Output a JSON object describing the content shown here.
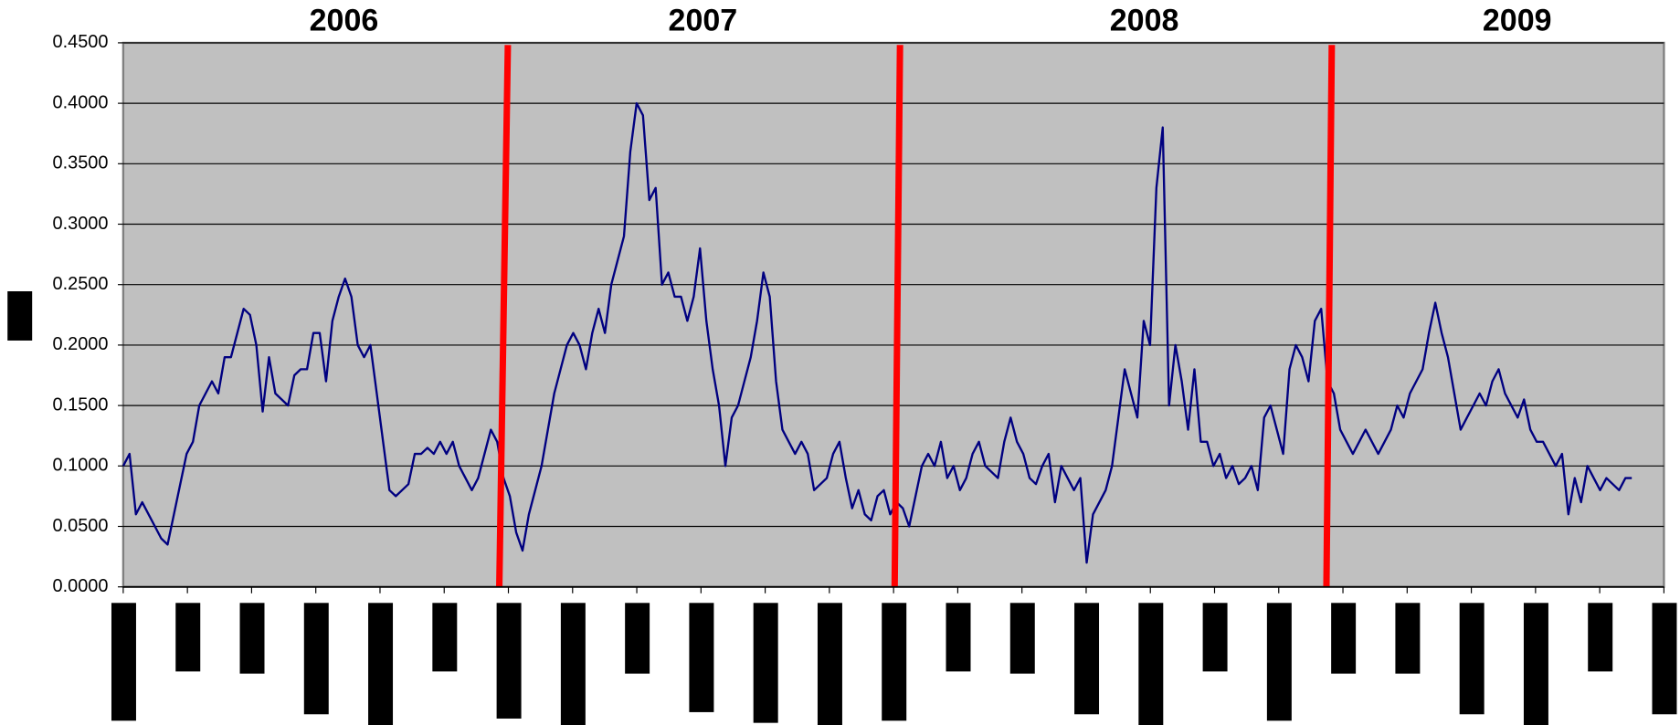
{
  "chart_data": {
    "type": "line",
    "annotations": [
      "2006",
      "2007",
      "2008",
      "2009"
    ],
    "series": [
      {
        "color": "#000080",
        "values": [
          0.1,
          0.11,
          0.06,
          0.07,
          0.06,
          0.05,
          0.04,
          0.035,
          0.06,
          0.085,
          0.11,
          0.12,
          0.15,
          0.16,
          0.17,
          0.16,
          0.19,
          0.19,
          0.21,
          0.23,
          0.225,
          0.2,
          0.145,
          0.19,
          0.16,
          0.155,
          0.15,
          0.175,
          0.18,
          0.18,
          0.21,
          0.21,
          0.17,
          0.22,
          0.24,
          0.255,
          0.24,
          0.2,
          0.19,
          0.2,
          0.16,
          0.12,
          0.08,
          0.075,
          0.08,
          0.085,
          0.11,
          0.11,
          0.115,
          0.11,
          0.12,
          0.11,
          0.12,
          0.1,
          0.09,
          0.08,
          0.09,
          0.11,
          0.13,
          0.12,
          0.09,
          0.075,
          0.045,
          0.03,
          0.06,
          0.08,
          0.1,
          0.13,
          0.16,
          0.18,
          0.2,
          0.21,
          0.2,
          0.18,
          0.21,
          0.23,
          0.21,
          0.25,
          0.27,
          0.29,
          0.36,
          0.4,
          0.39,
          0.32,
          0.33,
          0.25,
          0.26,
          0.24,
          0.24,
          0.22,
          0.24,
          0.28,
          0.22,
          0.18,
          0.15,
          0.1,
          0.14,
          0.15,
          0.17,
          0.19,
          0.22,
          0.26,
          0.24,
          0.17,
          0.13,
          0.12,
          0.11,
          0.12,
          0.11,
          0.08,
          0.085,
          0.09,
          0.11,
          0.12,
          0.09,
          0.065,
          0.08,
          0.06,
          0.055,
          0.075,
          0.08,
          0.06,
          0.07,
          0.065,
          0.05,
          0.075,
          0.1,
          0.11,
          0.1,
          0.12,
          0.09,
          0.1,
          0.08,
          0.09,
          0.11,
          0.12,
          0.1,
          0.095,
          0.09,
          0.12,
          0.14,
          0.12,
          0.11,
          0.09,
          0.085,
          0.1,
          0.11,
          0.07,
          0.1,
          0.09,
          0.08,
          0.09,
          0.02,
          0.06,
          0.07,
          0.08,
          0.1,
          0.14,
          0.18,
          0.16,
          0.14,
          0.22,
          0.2,
          0.33,
          0.38,
          0.15,
          0.2,
          0.17,
          0.13,
          0.18,
          0.12,
          0.12,
          0.1,
          0.11,
          0.09,
          0.1,
          0.085,
          0.09,
          0.1,
          0.08,
          0.14,
          0.15,
          0.13,
          0.11,
          0.18,
          0.2,
          0.19,
          0.17,
          0.22,
          0.23,
          0.17,
          0.16,
          0.13,
          0.12,
          0.11,
          0.12,
          0.13,
          0.12,
          0.11,
          0.12,
          0.13,
          0.15,
          0.14,
          0.16,
          0.17,
          0.18,
          0.21,
          0.235,
          0.21,
          0.19,
          0.16,
          0.13,
          0.14,
          0.15,
          0.16,
          0.15,
          0.17,
          0.18,
          0.16,
          0.15,
          0.14,
          0.155,
          0.13,
          0.12,
          0.12,
          0.11,
          0.1,
          0.11,
          0.06,
          0.09,
          0.07,
          0.1,
          0.09,
          0.08,
          0.09,
          0.085,
          0.08,
          0.09,
          0.09
        ]
      }
    ],
    "ylim": [
      0,
      0.45
    ],
    "yticks": [
      {
        "value": 0,
        "label": "0.0000"
      },
      {
        "value": 0.05,
        "label": "0.0500"
      },
      {
        "value": 0.1,
        "label": "0.1000"
      },
      {
        "value": 0.15,
        "label": "0.1500"
      },
      {
        "value": 0.2,
        "label": "0.2000"
      },
      {
        "value": 0.25,
        "label": "0.2500"
      },
      {
        "value": 0.3,
        "label": "0.3000"
      },
      {
        "value": 0.35,
        "label": "0.3500"
      },
      {
        "value": 0.4,
        "label": "0.4000"
      },
      {
        "value": 0.45,
        "label": "0.4500"
      }
    ],
    "grid": true
  }
}
